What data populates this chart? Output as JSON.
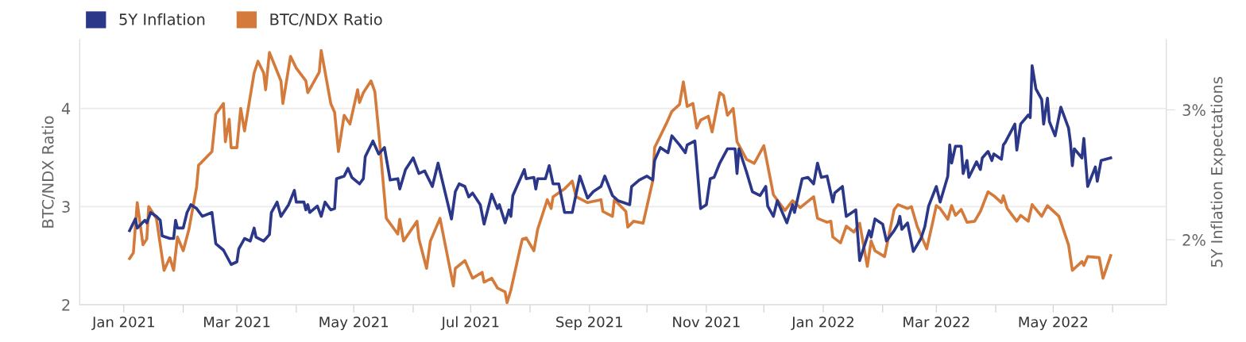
{
  "chart_data": {
    "type": "line",
    "ylabel": "BTC/NDX Ratio",
    "y2label": "5Y Inflation Expectations",
    "xlim": [
      "2020-12-09",
      "2022-06-29"
    ],
    "xticks": [
      {
        "value": "2021-01-01",
        "label": "Jan 2021"
      },
      {
        "value": "2021-02-01",
        "label": null
      },
      {
        "value": "2021-03-01",
        "label": "Mar 2021"
      },
      {
        "value": "2021-04-01",
        "label": null
      },
      {
        "value": "2021-05-01",
        "label": "May 2021"
      },
      {
        "value": "2021-06-01",
        "label": null
      },
      {
        "value": "2021-07-01",
        "label": "Jul 2021"
      },
      {
        "value": "2021-08-01",
        "label": null
      },
      {
        "value": "2021-09-01",
        "label": "Sep 2021"
      },
      {
        "value": "2021-10-01",
        "label": null
      },
      {
        "value": "2021-11-01",
        "label": "Nov 2021"
      },
      {
        "value": "2021-12-01",
        "label": null
      },
      {
        "value": "2022-01-01",
        "label": "Jan 2022"
      },
      {
        "value": "2022-02-01",
        "label": null
      },
      {
        "value": "2022-03-01",
        "label": "Mar 2022"
      },
      {
        "value": "2022-04-01",
        "label": null
      },
      {
        "value": "2022-05-01",
        "label": "May 2022"
      },
      {
        "value": "2022-06-01",
        "label": null
      }
    ],
    "ylim": [
      2,
      4.7
    ],
    "yticks": [
      2,
      3,
      4
    ],
    "y2lim": [
      1.5,
      3.54
    ],
    "y2ticks": [
      {
        "value": 2,
        "label": "2%"
      },
      {
        "value": 3,
        "label": "3%"
      }
    ],
    "grid": "y",
    "legend": "top left",
    "marker": "none",
    "line_style": "solid",
    "series": [
      {
        "name": "5Y Inflation",
        "color": "#2b3788",
        "axis": "y2",
        "x": [
          "2021-01-04",
          "2021-01-07",
          "2021-01-08",
          "2021-01-12",
          "2021-01-13",
          "2021-01-15",
          "2021-01-18",
          "2021-01-20",
          "2021-01-21",
          "2021-01-25",
          "2021-01-27",
          "2021-01-28",
          "2021-01-29",
          "2021-02-01",
          "2021-02-03",
          "2021-02-05",
          "2021-02-08",
          "2021-02-11",
          "2021-02-16",
          "2021-02-18",
          "2021-02-22",
          "2021-02-26",
          "2021-03-01",
          "2021-03-02",
          "2021-03-05",
          "2021-03-08",
          "2021-03-10",
          "2021-03-11",
          "2021-03-15",
          "2021-03-18",
          "2021-03-19",
          "2021-03-22",
          "2021-03-24",
          "2021-03-28",
          "2021-03-31",
          "2021-04-01",
          "2021-04-05",
          "2021-04-06",
          "2021-04-07",
          "2021-04-08",
          "2021-04-12",
          "2021-04-14",
          "2021-04-16",
          "2021-04-19",
          "2021-04-21",
          "2021-04-22",
          "2021-04-26",
          "2021-04-28",
          "2021-04-30",
          "2021-05-04",
          "2021-05-06",
          "2021-05-07",
          "2021-05-11",
          "2021-05-14",
          "2021-05-17",
          "2021-05-20",
          "2021-05-24",
          "2021-05-25",
          "2021-05-28",
          "2021-06-01",
          "2021-06-04",
          "2021-06-07",
          "2021-06-11",
          "2021-06-14",
          "2021-06-21",
          "2021-06-23",
          "2021-06-25",
          "2021-06-28",
          "2021-06-30",
          "2021-07-02",
          "2021-07-06",
          "2021-07-08",
          "2021-07-12",
          "2021-07-15",
          "2021-07-16",
          "2021-07-19",
          "2021-07-21",
          "2021-07-22",
          "2021-07-23",
          "2021-07-29",
          "2021-07-30",
          "2021-08-03",
          "2021-08-04",
          "2021-08-05",
          "2021-08-09",
          "2021-08-11",
          "2021-08-13",
          "2021-08-16",
          "2021-08-19",
          "2021-08-23",
          "2021-08-25",
          "2021-08-27",
          "2021-08-31",
          "2021-09-03",
          "2021-09-07",
          "2021-09-09",
          "2021-09-13",
          "2021-09-16",
          "2021-09-22",
          "2021-09-23",
          "2021-09-27",
          "2021-10-01",
          "2021-10-04",
          "2021-10-05",
          "2021-10-08",
          "2021-10-12",
          "2021-10-14",
          "2021-10-18",
          "2021-10-21",
          "2021-10-22",
          "2021-10-26",
          "2021-10-29",
          "2021-11-01",
          "2021-11-03",
          "2021-11-05",
          "2021-11-08",
          "2021-11-12",
          "2021-11-16",
          "2021-11-17",
          "2021-11-18",
          "2021-11-22",
          "2021-11-25",
          "2021-11-29",
          "2021-12-02",
          "2021-12-03",
          "2021-12-06",
          "2021-12-08",
          "2021-12-13",
          "2021-12-16",
          "2021-12-17",
          "2021-12-21",
          "2021-12-24",
          "2021-12-27",
          "2021-12-29",
          "2021-12-31",
          "2022-01-03",
          "2022-01-06",
          "2022-01-07",
          "2022-01-11",
          "2022-01-13",
          "2022-01-18",
          "2022-01-20",
          "2022-01-25",
          "2022-01-26",
          "2022-01-28",
          "2022-02-01",
          "2022-02-03",
          "2022-02-07",
          "2022-02-09",
          "2022-02-10",
          "2022-02-11",
          "2022-02-14",
          "2022-02-17",
          "2022-02-21",
          "2022-02-23",
          "2022-02-25",
          "2022-03-01",
          "2022-03-03",
          "2022-03-07",
          "2022-03-08",
          "2022-03-09",
          "2022-03-11",
          "2022-03-14",
          "2022-03-15",
          "2022-03-17",
          "2022-03-18",
          "2022-03-22",
          "2022-03-24",
          "2022-03-25",
          "2022-03-28",
          "2022-03-30",
          "2022-03-31",
          "2022-04-04",
          "2022-04-05",
          "2022-04-06",
          "2022-04-11",
          "2022-04-12",
          "2022-04-14",
          "2022-04-18",
          "2022-04-19",
          "2022-04-20",
          "2022-04-22",
          "2022-04-25",
          "2022-04-26",
          "2022-04-28",
          "2022-04-29",
          "2022-05-02",
          "2022-05-05",
          "2022-05-09",
          "2022-05-10",
          "2022-05-11",
          "2022-05-12",
          "2022-05-16",
          "2022-05-17",
          "2022-05-19",
          "2022-05-23",
          "2022-05-24",
          "2022-05-26",
          "2022-05-31"
        ],
        "values": [
          2.07,
          2.16,
          2.09,
          2.15,
          2.13,
          2.21,
          2.18,
          2.15,
          2.03,
          2.01,
          2.01,
          2.15,
          2.09,
          2.09,
          2.21,
          2.27,
          2.24,
          2.18,
          2.21,
          1.97,
          1.92,
          1.81,
          1.83,
          1.93,
          2.01,
          1.99,
          2.09,
          2.02,
          1.99,
          2.04,
          2.21,
          2.29,
          2.18,
          2.27,
          2.38,
          2.29,
          2.29,
          2.23,
          2.27,
          2.21,
          2.26,
          2.18,
          2.29,
          2.23,
          2.24,
          2.47,
          2.49,
          2.55,
          2.48,
          2.43,
          2.47,
          2.64,
          2.76,
          2.66,
          2.71,
          2.46,
          2.47,
          2.39,
          2.54,
          2.63,
          2.51,
          2.53,
          2.41,
          2.59,
          2.16,
          2.37,
          2.43,
          2.41,
          2.33,
          2.36,
          2.27,
          2.12,
          2.35,
          2.24,
          2.27,
          2.13,
          2.23,
          2.18,
          2.34,
          2.54,
          2.47,
          2.48,
          2.39,
          2.47,
          2.47,
          2.57,
          2.43,
          2.43,
          2.21,
          2.21,
          2.35,
          2.49,
          2.32,
          2.37,
          2.41,
          2.49,
          2.34,
          2.3,
          2.27,
          2.41,
          2.46,
          2.49,
          2.46,
          2.61,
          2.71,
          2.67,
          2.8,
          2.73,
          2.67,
          2.73,
          2.76,
          2.24,
          2.27,
          2.47,
          2.48,
          2.59,
          2.7,
          2.7,
          2.51,
          2.7,
          2.52,
          2.37,
          2.34,
          2.41,
          2.26,
          2.18,
          2.3,
          2.13,
          2.27,
          2.21,
          2.47,
          2.48,
          2.43,
          2.59,
          2.48,
          2.49,
          2.29,
          2.36,
          2.41,
          2.18,
          2.23,
          1.84,
          2.07,
          2.02,
          2.16,
          2.12,
          1.99,
          2.07,
          2.12,
          2.18,
          2.08,
          2.13,
          1.91,
          2.01,
          2.1,
          2.26,
          2.41,
          2.29,
          2.49,
          2.73,
          2.59,
          2.72,
          2.72,
          2.51,
          2.61,
          2.48,
          2.6,
          2.54,
          2.63,
          2.68,
          2.61,
          2.66,
          2.62,
          2.73,
          2.75,
          2.89,
          2.69,
          2.89,
          2.96,
          2.94,
          3.34,
          3.16,
          3.08,
          2.89,
          3.09,
          2.91,
          2.8,
          3.02,
          2.86,
          2.75,
          2.57,
          2.7,
          2.63,
          2.78,
          2.41,
          2.56,
          2.45,
          2.61,
          2.63
        ]
      },
      {
        "name": "BTC/NDX Ratio",
        "color": "#d47a3a",
        "axis": "y",
        "x": [
          "2021-01-04",
          "2021-01-06",
          "2021-01-08",
          "2021-01-11",
          "2021-01-13",
          "2021-01-14",
          "2021-01-18",
          "2021-01-22",
          "2021-01-25",
          "2021-01-27",
          "2021-01-29",
          "2021-02-01",
          "2021-02-04",
          "2021-02-08",
          "2021-02-09",
          "2021-02-16",
          "2021-02-18",
          "2021-02-22",
          "2021-02-23",
          "2021-02-25",
          "2021-02-26",
          "2021-03-01",
          "2021-03-03",
          "2021-03-05",
          "2021-03-10",
          "2021-03-12",
          "2021-03-15",
          "2021-03-16",
          "2021-03-18",
          "2021-03-24",
          "2021-03-25",
          "2021-03-29",
          "2021-04-01",
          "2021-04-06",
          "2021-04-07",
          "2021-04-13",
          "2021-04-14",
          "2021-04-19",
          "2021-04-21",
          "2021-04-23",
          "2021-04-26",
          "2021-04-29",
          "2021-05-03",
          "2021-05-04",
          "2021-05-06",
          "2021-05-10",
          "2021-05-12",
          "2021-05-14",
          "2021-05-18",
          "2021-05-24",
          "2021-05-25",
          "2021-05-27",
          "2021-06-03",
          "2021-06-04",
          "2021-06-08",
          "2021-06-10",
          "2021-06-15",
          "2021-06-22",
          "2021-06-23",
          "2021-06-28",
          "2021-07-02",
          "2021-07-07",
          "2021-07-08",
          "2021-07-12",
          "2021-07-15",
          "2021-07-19",
          "2021-07-20",
          "2021-07-22",
          "2021-07-27",
          "2021-07-28",
          "2021-07-30",
          "2021-08-03",
          "2021-08-05",
          "2021-08-10",
          "2021-08-12",
          "2021-08-13",
          "2021-08-19",
          "2021-08-23",
          "2021-08-25",
          "2021-08-31",
          "2021-09-07",
          "2021-09-08",
          "2021-09-13",
          "2021-09-14",
          "2021-09-20",
          "2021-09-21",
          "2021-09-24",
          "2021-09-29",
          "2021-10-04",
          "2021-10-05",
          "2021-10-11",
          "2021-10-14",
          "2021-10-18",
          "2021-10-20",
          "2021-10-22",
          "2021-10-25",
          "2021-10-27",
          "2021-10-29",
          "2021-11-02",
          "2021-11-04",
          "2021-11-08",
          "2021-11-10",
          "2021-11-12",
          "2021-11-15",
          "2021-11-17",
          "2021-11-22",
          "2021-11-26",
          "2021-12-01",
          "2021-12-06",
          "2021-12-12",
          "2021-12-16",
          "2021-12-20",
          "2021-12-27",
          "2021-12-29",
          "2022-01-03",
          "2022-01-05",
          "2022-01-06",
          "2022-01-10",
          "2022-01-13",
          "2022-01-17",
          "2022-01-20",
          "2022-01-24",
          "2022-01-26",
          "2022-01-28",
          "2022-02-02",
          "2022-02-07",
          "2022-02-09",
          "2022-02-14",
          "2022-02-16",
          "2022-02-19",
          "2022-02-24",
          "2022-02-27",
          "2022-03-01",
          "2022-03-03",
          "2022-03-07",
          "2022-03-09",
          "2022-03-11",
          "2022-03-14",
          "2022-03-17",
          "2022-03-21",
          "2022-03-24",
          "2022-03-28",
          "2022-03-31",
          "2022-04-04",
          "2022-04-05",
          "2022-04-07",
          "2022-04-12",
          "2022-04-14",
          "2022-04-18",
          "2022-04-20",
          "2022-04-25",
          "2022-04-28",
          "2022-05-04",
          "2022-05-09",
          "2022-05-11",
          "2022-05-16",
          "2022-05-17",
          "2022-05-19",
          "2022-05-25",
          "2022-05-27",
          "2022-05-31"
        ],
        "values": [
          2.47,
          2.53,
          3.04,
          2.61,
          2.67,
          3.0,
          2.88,
          2.35,
          2.48,
          2.35,
          2.69,
          2.55,
          2.77,
          3.2,
          3.42,
          3.56,
          3.94,
          4.05,
          3.66,
          3.89,
          3.6,
          3.6,
          4.0,
          3.77,
          4.36,
          4.48,
          4.36,
          4.19,
          4.57,
          4.28,
          4.05,
          4.53,
          4.41,
          4.28,
          4.16,
          4.37,
          4.59,
          4.05,
          3.96,
          3.56,
          3.93,
          3.84,
          4.19,
          4.06,
          4.16,
          4.28,
          4.17,
          3.77,
          2.88,
          2.72,
          2.87,
          2.65,
          2.85,
          2.67,
          2.37,
          2.65,
          2.88,
          2.19,
          2.37,
          2.45,
          2.27,
          2.33,
          2.23,
          2.27,
          2.17,
          2.13,
          2.02,
          2.15,
          2.59,
          2.67,
          2.68,
          2.55,
          2.77,
          3.07,
          2.98,
          3.1,
          3.18,
          3.26,
          3.1,
          3.04,
          3.07,
          2.95,
          2.9,
          3.07,
          2.95,
          2.79,
          2.85,
          2.83,
          3.26,
          3.6,
          3.84,
          3.97,
          4.04,
          4.27,
          4.02,
          4.05,
          3.8,
          3.88,
          3.92,
          3.76,
          4.16,
          4.13,
          3.93,
          4.0,
          3.66,
          3.48,
          3.44,
          3.62,
          3.12,
          2.96,
          3.06,
          2.99,
          3.1,
          2.88,
          2.84,
          2.85,
          2.69,
          2.63,
          2.8,
          2.74,
          2.83,
          2.39,
          2.65,
          2.55,
          2.49,
          2.97,
          3.02,
          2.98,
          3.0,
          2.8,
          2.57,
          2.83,
          3.01,
          2.98,
          2.87,
          3.01,
          2.91,
          2.97,
          2.84,
          2.85,
          2.95,
          3.15,
          3.11,
          3.04,
          3.11,
          2.98,
          2.85,
          2.91,
          2.85,
          3.02,
          2.9,
          3.01,
          2.9,
          2.61,
          2.35,
          2.44,
          2.4,
          2.49,
          2.48,
          2.27,
          2.5
        ]
      }
    ]
  }
}
